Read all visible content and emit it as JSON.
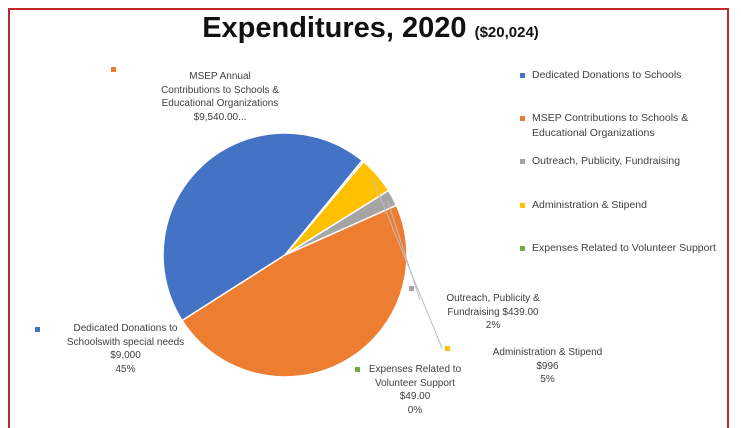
{
  "colors": {
    "frame": "#c0282d",
    "dedicated": "#4472c4",
    "msep": "#ed7d31",
    "outreach": "#a5a5a5",
    "admin": "#ffc000",
    "volunteer": "#70ad47"
  },
  "chart_data": {
    "type": "pie",
    "title": "Expenditures, 2020",
    "subtitle": "($20,024)",
    "legend_position": "right",
    "legend": [
      {
        "label": "Dedicated Donations to Schools",
        "color": "#4472c4"
      },
      {
        "label": "MSEP Contributions to Schools & Educational Organizations",
        "color": "#ed7d31"
      },
      {
        "label": "Outreach, Publicity, Fundraising",
        "color": "#a5a5a5"
      },
      {
        "label": "Administration & Stipend",
        "color": "#ffc000"
      },
      {
        "label": "Expenses Related to Volunteer Support",
        "color": "#70ad47"
      }
    ],
    "slices": [
      {
        "key": "dedicated",
        "value": 9000,
        "color": "#4472c4",
        "label_lines": [
          "Dedicated Donations to",
          "Schoolswith special needs",
          "$9,000",
          "45%"
        ]
      },
      {
        "key": "volunteer",
        "value": 49,
        "color": "#70ad47",
        "label_lines": [
          "Expenses Related to",
          "Volunteer Support",
          "$49.00",
          "0%"
        ]
      },
      {
        "key": "admin",
        "value": 996,
        "color": "#ffc000",
        "label_lines": [
          "Administration & Stipend",
          "$996",
          "5%"
        ]
      },
      {
        "key": "outreach",
        "value": 439,
        "color": "#a5a5a5",
        "label_lines": [
          "Outreach, Publicity &",
          "Fundraising $439.00",
          "2%"
        ]
      },
      {
        "key": "msep",
        "value": 9540,
        "color": "#ed7d31",
        "label_lines": [
          "MSEP Annual",
          "Contributions to Schools &",
          "Educational Organizations",
          "$9,540.00..."
        ]
      }
    ]
  }
}
